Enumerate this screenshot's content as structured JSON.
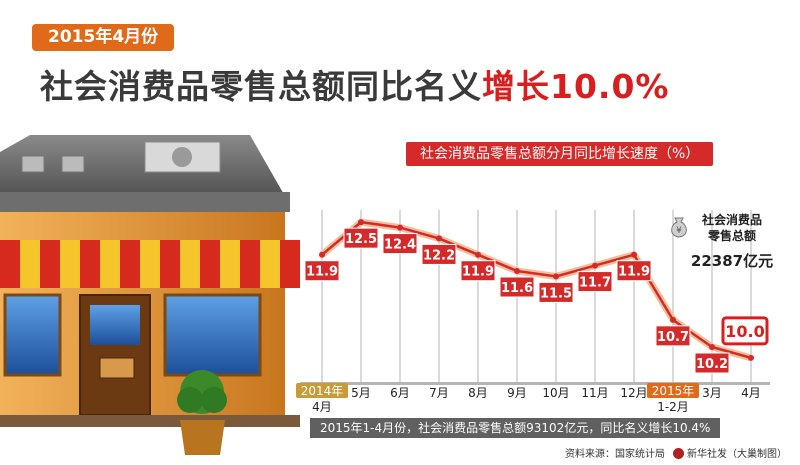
{
  "header": {
    "date_badge": "2015年4月份",
    "headline_main": "社会消费品零售总额同比名义",
    "headline_highlight": "增长10.0%"
  },
  "chart_title": "社会消费品零售总额分月同比增长速度（%）",
  "total": {
    "label_line1": "社会消费品",
    "label_line2": "零售总额",
    "value": "22387亿元"
  },
  "summary": "2015年1-4月份，社会消费品零售总额93102亿元，同比名义增长10.4%",
  "source": {
    "text": "资料来源：国家统计局",
    "credit": "新华社发（大巢制图）"
  },
  "colors": {
    "accent_red": "#d81e1e",
    "accent_orange": "#e06a1a",
    "line_red": "#d42a2a"
  },
  "chart_data": {
    "type": "line",
    "title": "社会消费品零售总额分月同比增长速度（%）",
    "categories": [
      "2014年4月",
      "5月",
      "6月",
      "7月",
      "8月",
      "9月",
      "10月",
      "11月",
      "12月",
      "2015年1-2月",
      "3月",
      "4月"
    ],
    "values": [
      11.9,
      12.5,
      12.4,
      12.2,
      11.9,
      11.6,
      11.5,
      11.7,
      11.9,
      10.7,
      10.2,
      10.0
    ],
    "value_labels": [
      "11.9",
      "12.5",
      "12.4",
      "12.2",
      "11.9",
      "11.6",
      "11.5",
      "11.7",
      "11.9",
      "10.7",
      "10.2",
      "10.0"
    ],
    "tick_labels": [
      {
        "line1": "2014年",
        "line2": "4月",
        "highlight": true
      },
      {
        "line1": "5月",
        "line2": ""
      },
      {
        "line1": "6月",
        "line2": ""
      },
      {
        "line1": "7月",
        "line2": ""
      },
      {
        "line1": "8月",
        "line2": ""
      },
      {
        "line1": "9月",
        "line2": ""
      },
      {
        "line1": "10月",
        "line2": ""
      },
      {
        "line1": "11月",
        "line2": ""
      },
      {
        "line1": "12月",
        "line2": ""
      },
      {
        "line1": "2015年",
        "line2": "1-2月",
        "highlight": true
      },
      {
        "line1": "3月",
        "line2": ""
      },
      {
        "line1": "4月",
        "line2": ""
      }
    ],
    "xlabel": "",
    "ylabel": "",
    "ylim": [
      9.5,
      13
    ],
    "grid": "vertical",
    "legend": "none"
  }
}
